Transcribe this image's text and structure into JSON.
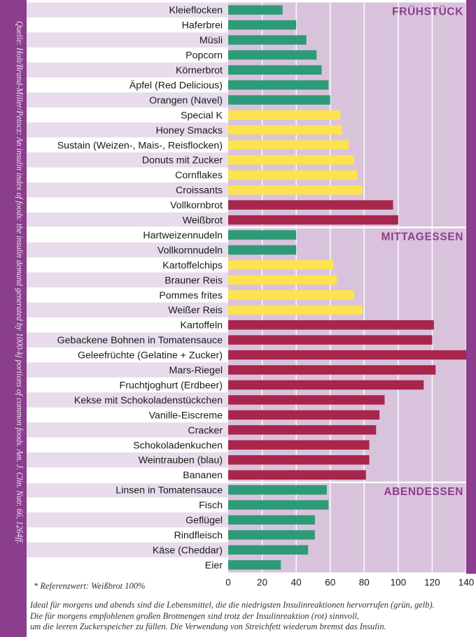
{
  "source_note": "Quelle: Holt/Brand-Miller/Petocz: An insulin index of foods: the insulin demand generated by 1000-kj portions of common foods. Am. J. Clin. Nutr. 66, 1264ff.",
  "footnote": "* Referenzwert: Weißbrot 100%",
  "bottom_note": [
    "Ideal für morgens und abends sind die Lebensmittel, die die niedrigsten Insulinreaktionen hervorrufen (grün, gelb).",
    "Die für morgens empfohlenen großen Brotmengen sind trotz der Insulinreaktion (rot) sinnvoll,",
    "um die leeren Zuckerspeicher zu füllen. Die Verwendung von Streichfett wiederum bremst das Insulin."
  ],
  "colors": {
    "green": "#2e9b78",
    "yellow": "#fce34f",
    "red": "#a8264c",
    "stripe": "#e8dcec",
    "panel": "#d9c3dc",
    "section_title": "#8b3d8e",
    "frame": "#8b3d8e"
  },
  "chart_data": {
    "type": "bar",
    "orientation": "horizontal",
    "xlim": [
      0,
      140
    ],
    "xticks": [
      "0",
      "20",
      "40",
      "60",
      "80",
      "100",
      "120",
      "140"
    ],
    "grid": true,
    "sections": [
      {
        "title": "FRÜHSTÜCK",
        "start": 0,
        "end": 14
      },
      {
        "title": "MITTAGESSEN",
        "start": 15,
        "end": 31
      },
      {
        "title": "ABENDESSEN",
        "start": 32,
        "end": 37
      }
    ],
    "categories": [
      "Kleieflocken",
      "Haferbrei",
      "Müsli",
      "Popcorn",
      "Körnerbrot",
      "Äpfel (Red Delicious)",
      "Orangen (Navel)",
      "Special K",
      "Honey Smacks",
      "Sustain (Weizen-, Mais-, Reisflocken)",
      "Donuts mit Zucker",
      "Cornflakes",
      "Croissants",
      "Vollkornbrot",
      "Weißbrot",
      "Hartweizennudeln",
      "Vollkornnudeln",
      "Kartoffelchips",
      "Brauner Reis",
      "Pommes frites",
      "Weißer Reis",
      "Kartoffeln",
      "Gebackene Bohnen in Tomatensauce",
      "Geleefrüchte (Gelatine + Zucker)",
      "Mars-Riegel",
      "Fruchtjoghurt (Erdbeer)",
      "Kekse mit Schokoladenstückchen",
      "Vanille-Eiscreme",
      "Cracker",
      "Schokoladenkuchen",
      "Weintrauben (blau)",
      "Bananen",
      "Linsen in Tomatensauce",
      "Fisch",
      "Geflügel",
      "Rindfleisch",
      "Käse (Cheddar)",
      "Eier"
    ],
    "values": [
      32,
      40,
      46,
      52,
      55,
      59,
      60,
      66,
      67,
      71,
      74,
      76,
      79,
      97,
      100,
      40,
      40,
      62,
      64,
      74,
      79,
      121,
      120,
      140,
      122,
      115,
      92,
      89,
      87,
      83,
      83,
      81,
      58,
      59,
      51,
      51,
      47,
      31
    ],
    "bar_colors": [
      "green",
      "green",
      "green",
      "green",
      "green",
      "green",
      "green",
      "yellow",
      "yellow",
      "yellow",
      "yellow",
      "yellow",
      "yellow",
      "red",
      "red",
      "green",
      "green",
      "yellow",
      "yellow",
      "yellow",
      "yellow",
      "red",
      "red",
      "red",
      "red",
      "red",
      "red",
      "red",
      "red",
      "red",
      "red",
      "red",
      "green",
      "green",
      "green",
      "green",
      "green",
      "green"
    ]
  }
}
